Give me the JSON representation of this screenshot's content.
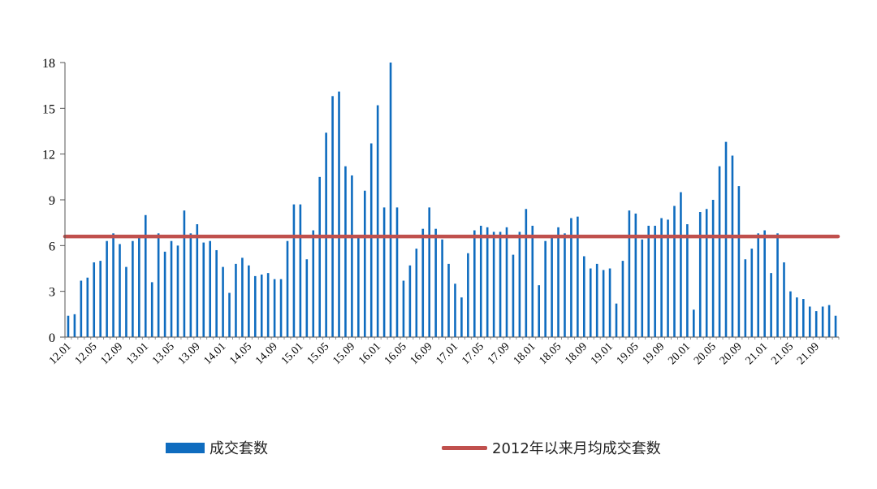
{
  "chart_data": {
    "type": "bar",
    "ylim": [
      0,
      18
    ],
    "yticks": [
      0,
      3,
      6,
      9,
      12,
      15,
      18
    ],
    "xtick_labels": [
      "12.01",
      "12.05",
      "12.09",
      "13.01",
      "13.05",
      "13.09",
      "14.01",
      "14.05",
      "14.09",
      "15.01",
      "15.05",
      "15.09",
      "16.01",
      "16.05",
      "16.09",
      "17.01",
      "17.05",
      "17.09",
      "18.01",
      "18.05",
      "18.09",
      "19.01",
      "19.05",
      "19.09",
      "20.01",
      "20.05",
      "20.09",
      "21.01",
      "21.05",
      "21.09"
    ],
    "categories": [
      "12.01",
      "12.02",
      "12.03",
      "12.04",
      "12.05",
      "12.06",
      "12.07",
      "12.08",
      "12.09",
      "12.10",
      "12.11",
      "12.12",
      "13.01",
      "13.02",
      "13.03",
      "13.04",
      "13.05",
      "13.06",
      "13.07",
      "13.08",
      "13.09",
      "13.10",
      "13.11",
      "13.12",
      "14.01",
      "14.02",
      "14.03",
      "14.04",
      "14.05",
      "14.06",
      "14.07",
      "14.08",
      "14.09",
      "14.10",
      "14.11",
      "14.12",
      "15.01",
      "15.02",
      "15.03",
      "15.04",
      "15.05",
      "15.06",
      "15.07",
      "15.08",
      "15.09",
      "15.10",
      "15.11",
      "15.12",
      "16.01",
      "16.02",
      "16.03",
      "16.04",
      "16.05",
      "16.06",
      "16.07",
      "16.08",
      "16.09",
      "16.10",
      "16.11",
      "16.12",
      "17.01",
      "17.02",
      "17.03",
      "17.04",
      "17.05",
      "17.06",
      "17.07",
      "17.08",
      "17.09",
      "17.10",
      "17.11",
      "17.12",
      "18.01",
      "18.02",
      "18.03",
      "18.04",
      "18.05",
      "18.06",
      "18.07",
      "18.08",
      "18.09",
      "18.10",
      "18.11",
      "18.12",
      "19.01",
      "19.02",
      "19.03",
      "19.04",
      "19.05",
      "19.06",
      "19.07",
      "19.08",
      "19.09",
      "19.10",
      "19.11",
      "19.12",
      "20.01",
      "20.02",
      "20.03",
      "20.04",
      "20.05",
      "20.06",
      "20.07",
      "20.08",
      "20.09",
      "20.10",
      "20.11",
      "20.12",
      "21.01",
      "21.02",
      "21.03",
      "21.04",
      "21.05",
      "21.06",
      "21.07",
      "21.08",
      "21.09",
      "21.10",
      "21.11",
      "21.12"
    ],
    "series": [
      {
        "name": "成交套数",
        "color": "#0f6cbf",
        "values": [
          1.4,
          1.5,
          3.7,
          3.9,
          4.9,
          5.0,
          6.3,
          6.8,
          6.1,
          4.6,
          6.3,
          6.6,
          8.0,
          3.6,
          6.8,
          5.6,
          6.3,
          6.0,
          8.3,
          6.8,
          7.4,
          6.2,
          6.3,
          5.7,
          4.6,
          2.9,
          4.8,
          5.2,
          4.7,
          4.0,
          4.1,
          4.2,
          3.8,
          3.8,
          6.3,
          8.7,
          8.7,
          5.1,
          7.0,
          10.5,
          13.4,
          15.8,
          16.1,
          11.2,
          10.6,
          6.5,
          9.6,
          12.7,
          15.2,
          8.5,
          18.0,
          8.5,
          3.7,
          4.7,
          5.8,
          7.1,
          8.5,
          7.1,
          6.4,
          4.8,
          3.5,
          2.6,
          5.5,
          7.0,
          7.3,
          7.2,
          6.9,
          6.9,
          7.2,
          5.4,
          6.9,
          8.4,
          7.3,
          3.4,
          6.3,
          6.6,
          7.2,
          6.8,
          7.8,
          7.9,
          5.3,
          4.5,
          4.8,
          4.4,
          4.5,
          2.2,
          5.0,
          8.3,
          8.1,
          6.4,
          7.3,
          7.3,
          7.8,
          7.7,
          8.6,
          9.5,
          7.4,
          1.8,
          8.2,
          8.4,
          9.0,
          11.2,
          12.8,
          11.9,
          9.9,
          5.1,
          5.8,
          6.8,
          7.0,
          4.2,
          6.8,
          4.9,
          3.0,
          2.6,
          2.5,
          2.0,
          1.7,
          2.0,
          2.1,
          1.4
        ]
      },
      {
        "name": "2012年以来月均成交套数",
        "color": "#c0504d",
        "type": "line",
        "value": 6.6
      }
    ],
    "legend": {
      "position": "bottom"
    }
  }
}
